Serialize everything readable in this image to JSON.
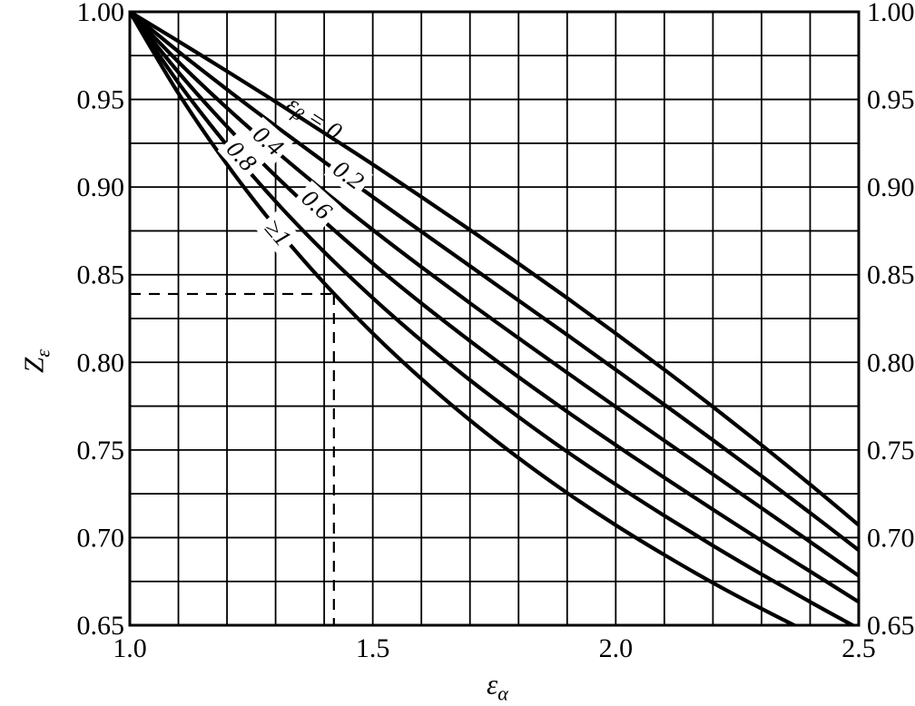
{
  "chart_data": {
    "type": "line",
    "title": "",
    "xlabel": {
      "main": "ε",
      "sub": "α"
    },
    "ylabel": {
      "main": "Z",
      "sub": "ε"
    },
    "x_axis": {
      "min": 1.0,
      "max": 2.5,
      "grid_step": 0.1,
      "grid": true,
      "ticks": [
        {
          "value": 1.0,
          "label": "1.0"
        },
        {
          "value": 1.5,
          "label": "1.5"
        },
        {
          "value": 2.0,
          "label": "2.0"
        },
        {
          "value": 2.5,
          "label": "2.5"
        }
      ]
    },
    "y_axis": {
      "min": 0.65,
      "max": 1.0,
      "grid_step": 0.025,
      "grid": true,
      "labels_on_both_sides": true,
      "ticks": [
        {
          "value": 1.0,
          "label": "1.00"
        },
        {
          "value": 0.95,
          "label": "0.95"
        },
        {
          "value": 0.9,
          "label": "0.90"
        },
        {
          "value": 0.85,
          "label": "0.85"
        },
        {
          "value": 0.8,
          "label": "0.80"
        },
        {
          "value": 0.75,
          "label": "0.75"
        },
        {
          "value": 0.7,
          "label": "0.70"
        },
        {
          "value": 0.65,
          "label": "0.65"
        }
      ]
    },
    "legend_prefix": {
      "main": "ε",
      "sub": "β",
      "equals": " = "
    },
    "x_values": [
      1.0,
      1.1,
      1.2,
      1.3,
      1.4,
      1.5,
      1.6,
      1.7,
      1.8,
      1.9,
      2.0,
      2.1,
      2.2,
      2.3,
      2.4,
      2.5
    ],
    "series": [
      {
        "name": "eps-beta-0",
        "label": "0",
        "show_prefix": true,
        "label_pos": {
          "at": 1.38,
          "dy": -10,
          "angle": 33,
          "halo": false
        },
        "values": [
          1.0,
          0.9832,
          0.9661,
          0.9487,
          0.9309,
          0.9129,
          0.8944,
          0.8756,
          0.8563,
          0.8367,
          0.8165,
          0.7958,
          0.7746,
          0.7528,
          0.7303,
          0.7071
        ]
      },
      {
        "name": "eps-beta-0.2",
        "label": "0.2",
        "show_prefix": false,
        "label_pos": {
          "at": 1.45,
          "dy": -5,
          "angle": 36,
          "halo": true
        },
        "values": [
          1.0,
          0.9773,
          0.9557,
          0.9348,
          0.9144,
          0.8944,
          0.8746,
          0.855,
          0.8353,
          0.8157,
          0.7958,
          0.7758,
          0.7556,
          0.7351,
          0.7141,
          0.6928
        ]
      },
      {
        "name": "eps-beta-0.4",
        "label": "0.4",
        "show_prefix": false,
        "label_pos": {
          "at": 1.285,
          "dy": -4,
          "angle": 41,
          "halo": true
        },
        "values": [
          1.0,
          0.9714,
          0.9451,
          0.9207,
          0.8976,
          0.8756,
          0.8544,
          0.8338,
          0.8138,
          0.7941,
          0.7746,
          0.7553,
          0.7361,
          0.7169,
          0.6976,
          0.6782
        ]
      },
      {
        "name": "eps-beta-0.6",
        "label": "0.6",
        "show_prefix": false,
        "label_pos": {
          "at": 1.385,
          "dy": -11,
          "angle": 42,
          "halo": true
        },
        "values": [
          1.0,
          0.9655,
          0.9345,
          0.9064,
          0.8805,
          0.8563,
          0.8337,
          0.8122,
          0.7916,
          0.7719,
          0.7528,
          0.7342,
          0.716,
          0.6982,
          0.6807,
          0.6633
        ]
      },
      {
        "name": "eps-beta-0.8",
        "label": "0.8",
        "show_prefix": false,
        "label_pos": {
          "at": 1.23,
          "dy": -7,
          "angle": 48,
          "halo": true
        },
        "values": [
          1.0,
          0.9595,
          0.9238,
          0.8918,
          0.863,
          0.8367,
          0.8124,
          0.7899,
          0.7689,
          0.749,
          0.7303,
          0.7125,
          0.6954,
          0.6791,
          0.6633,
          0.6481
        ]
      },
      {
        "name": "eps-beta-ge-1",
        "label": "≥1",
        "show_prefix": false,
        "label_pos": {
          "at": 1.305,
          "dy": 3,
          "angle": 49,
          "halo": true
        },
        "values": [
          1.0,
          0.9535,
          0.9129,
          0.8771,
          0.8452,
          0.8165,
          0.7906,
          0.767,
          0.7454,
          0.7255,
          0.7071,
          0.6901,
          0.6742,
          0.6594,
          0.6455,
          0.6325
        ]
      }
    ],
    "reading_guide": {
      "epsilon_alpha": 1.42,
      "z_epsilon": 0.839,
      "style": "dashed"
    },
    "colors": {
      "line": "#000000",
      "grid": "#000000",
      "background": "#ffffff",
      "text": "#000000"
    }
  }
}
